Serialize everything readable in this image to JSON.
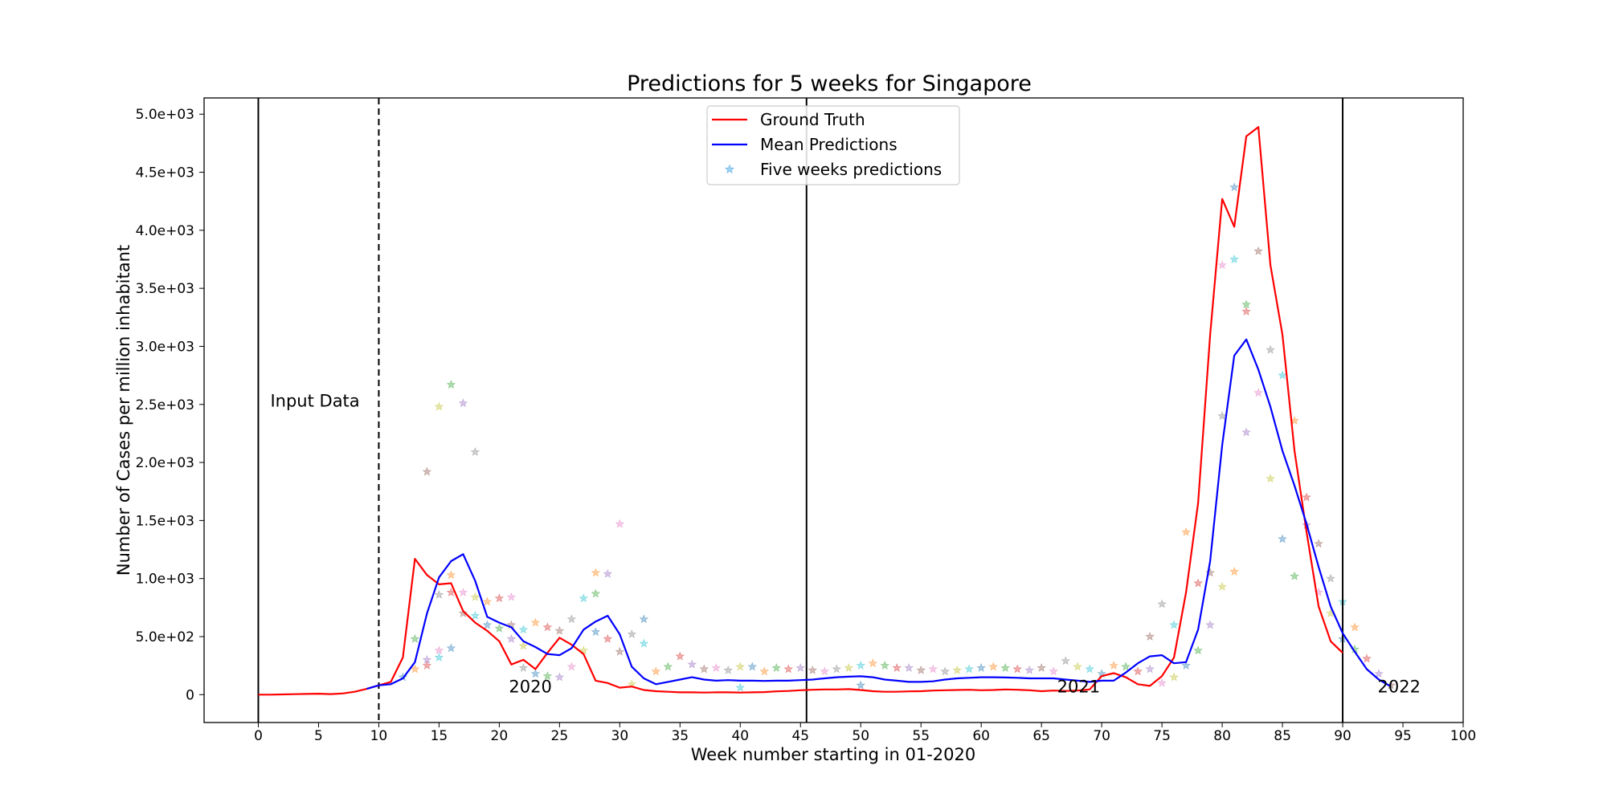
{
  "chart_data": {
    "type": "line",
    "title": "Predictions for 5 weeks for Singapore",
    "xlabel": "Week number starting in 01-2020",
    "ylabel": "Number of Cases per million inhabitant",
    "xlim": [
      -4.5,
      100
    ],
    "ylim": [
      -240,
      5140
    ],
    "x_ticks": [
      0,
      5,
      10,
      15,
      20,
      25,
      30,
      35,
      40,
      45,
      50,
      55,
      60,
      65,
      70,
      75,
      80,
      85,
      90,
      95,
      100
    ],
    "x_tick_labels": [
      "0",
      "5",
      "10",
      "15",
      "20",
      "25",
      "30",
      "35",
      "40",
      "45",
      "50",
      "55",
      "60",
      "65",
      "70",
      "75",
      "80",
      "85",
      "90",
      "95",
      "100"
    ],
    "y_ticks": [
      0,
      500,
      1000,
      1500,
      2000,
      2500,
      3000,
      3500,
      4000,
      4500,
      5000
    ],
    "y_tick_labels": [
      "0",
      "5.0e+02",
      "1.0e+03",
      "1.5e+03",
      "2.0e+03",
      "2.5e+03",
      "3.0e+03",
      "3.5e+03",
      "4.0e+03",
      "4.5e+03",
      "5.0e+03"
    ],
    "grid": false,
    "legend_position": "top-center",
    "vertical_lines": [
      {
        "x": 0,
        "style": "solid",
        "color": "#000000"
      },
      {
        "x": 10,
        "style": "dashed",
        "color": "#000000"
      },
      {
        "x": 45.5,
        "style": "solid",
        "color": "#000000"
      },
      {
        "x": 90,
        "style": "solid",
        "color": "#000000"
      }
    ],
    "annotations": [
      {
        "text": "Input Data",
        "x": 1,
        "y": 2480
      },
      {
        "text": "2020",
        "x": 20.8,
        "y": 20
      },
      {
        "text": "2021",
        "x": 66.3,
        "y": 20
      },
      {
        "text": "2022",
        "x": 92.9,
        "y": 20
      }
    ],
    "series": [
      {
        "name": "Ground Truth",
        "kind": "line",
        "color": "#ff0000",
        "x": [
          0,
          1,
          2,
          3,
          4,
          5,
          6,
          7,
          8,
          9,
          10,
          11,
          12,
          13,
          14,
          15,
          16,
          17,
          18,
          19,
          20,
          21,
          22,
          23,
          24,
          25,
          26,
          27,
          28,
          29,
          30,
          31,
          32,
          33,
          34,
          35,
          36,
          37,
          38,
          39,
          40,
          41,
          42,
          43,
          44,
          45,
          46,
          47,
          48,
          49,
          50,
          51,
          52,
          53,
          54,
          55,
          56,
          57,
          58,
          59,
          60,
          61,
          62,
          63,
          64,
          65,
          66,
          67,
          68,
          69,
          70,
          71,
          72,
          73,
          74,
          75,
          76,
          77,
          78,
          79,
          80,
          81,
          82,
          83,
          84,
          85,
          86,
          87,
          88,
          89,
          90
        ],
        "values": [
          0,
          0,
          2,
          4,
          6,
          8,
          5,
          10,
          25,
          50,
          80,
          110,
          320,
          1170,
          1030,
          950,
          960,
          720,
          620,
          550,
          460,
          260,
          300,
          220,
          360,
          490,
          430,
          350,
          120,
          100,
          60,
          70,
          40,
          30,
          25,
          20,
          20,
          18,
          20,
          20,
          18,
          20,
          22,
          28,
          32,
          38,
          42,
          45,
          45,
          48,
          40,
          30,
          25,
          25,
          28,
          30,
          35,
          38,
          40,
          42,
          38,
          40,
          45,
          42,
          38,
          30,
          35,
          32,
          35,
          45,
          160,
          185,
          150,
          90,
          75,
          160,
          320,
          880,
          1650,
          3100,
          4270,
          4030,
          4810,
          4890,
          3700,
          3100,
          2100,
          1400,
          760,
          460,
          360
        ]
      },
      {
        "name": "Mean Predictions",
        "kind": "line",
        "color": "#0000ff",
        "x": [
          9,
          10,
          11,
          12,
          13,
          14,
          15,
          16,
          17,
          18,
          19,
          20,
          21,
          22,
          23,
          24,
          25,
          26,
          27,
          28,
          29,
          30,
          31,
          32,
          33,
          34,
          35,
          36,
          37,
          38,
          39,
          40,
          41,
          42,
          43,
          44,
          45,
          46,
          47,
          48,
          49,
          50,
          51,
          52,
          53,
          54,
          55,
          56,
          57,
          58,
          59,
          60,
          61,
          62,
          63,
          64,
          65,
          66,
          67,
          68,
          69,
          70,
          71,
          72,
          73,
          74,
          75,
          76,
          77,
          78,
          79,
          80,
          81,
          82,
          83,
          84,
          85,
          86,
          87,
          88,
          89,
          90,
          91,
          92,
          93,
          94
        ],
        "values": [
          50,
          80,
          90,
          140,
          280,
          700,
          1010,
          1150,
          1210,
          980,
          670,
          620,
          580,
          460,
          410,
          350,
          340,
          400,
          560,
          630,
          680,
          520,
          240,
          140,
          90,
          110,
          130,
          150,
          130,
          120,
          125,
          120,
          120,
          118,
          120,
          120,
          125,
          130,
          140,
          150,
          155,
          158,
          150,
          130,
          120,
          110,
          110,
          115,
          130,
          140,
          145,
          150,
          150,
          148,
          145,
          140,
          140,
          140,
          130,
          120,
          110,
          120,
          120,
          190,
          270,
          330,
          340,
          270,
          280,
          560,
          1150,
          2150,
          2920,
          3060,
          2800,
          2480,
          2100,
          1800,
          1470,
          1100,
          760,
          530,
          370,
          220,
          130,
          70
        ]
      },
      {
        "name": "Five weeks predictions",
        "kind": "scatter",
        "marker": "star",
        "color": "#1f77b4",
        "legend_color": "#5fb3e8",
        "palette": [
          "#1f77b4",
          "#ff7f0e",
          "#2ca02c",
          "#d62728",
          "#9467bd",
          "#8c564b",
          "#e377c2",
          "#7f7f7f",
          "#bcbd22",
          "#17becf"
        ],
        "x": [
          12,
          13,
          13,
          14,
          14,
          14,
          15,
          15,
          15,
          15,
          16,
          16,
          16,
          16,
          17,
          17,
          17,
          18,
          18,
          18,
          19,
          19,
          20,
          20,
          21,
          21,
          21,
          22,
          22,
          22,
          23,
          23,
          24,
          24,
          25,
          25,
          26,
          26,
          27,
          27,
          28,
          28,
          28,
          29,
          29,
          30,
          30,
          31,
          31,
          32,
          32,
          33,
          34,
          35,
          36,
          37,
          38,
          39,
          40,
          40,
          41,
          42,
          43,
          44,
          45,
          46,
          47,
          48,
          49,
          50,
          50,
          51,
          52,
          53,
          54,
          55,
          56,
          57,
          58,
          59,
          60,
          61,
          62,
          63,
          64,
          65,
          66,
          67,
          68,
          69,
          70,
          71,
          72,
          73,
          74,
          74,
          75,
          75,
          76,
          76,
          77,
          77,
          78,
          78,
          79,
          79,
          80,
          80,
          80,
          81,
          81,
          81,
          82,
          82,
          82,
          83,
          83,
          84,
          84,
          85,
          85,
          86,
          86,
          87,
          87,
          88,
          88,
          89,
          89,
          90,
          90,
          91,
          91,
          92,
          93,
          94
        ],
        "values": [
          150,
          220,
          480,
          250,
          300,
          1920,
          380,
          860,
          2480,
          320,
          400,
          1030,
          2670,
          880,
          2510,
          700,
          880,
          2090,
          840,
          680,
          600,
          800,
          570,
          830,
          480,
          600,
          840,
          230,
          420,
          560,
          180,
          620,
          160,
          580,
          150,
          550,
          240,
          650,
          380,
          830,
          540,
          1050,
          870,
          480,
          1040,
          370,
          1470,
          520,
          90,
          440,
          650,
          200,
          240,
          330,
          260,
          220,
          230,
          210,
          240,
          60,
          240,
          200,
          230,
          220,
          230,
          210,
          200,
          220,
          230,
          250,
          80,
          270,
          250,
          230,
          230,
          210,
          220,
          200,
          210,
          220,
          230,
          240,
          230,
          220,
          210,
          230,
          200,
          290,
          240,
          220,
          180,
          250,
          240,
          200,
          220,
          500,
          100,
          780,
          150,
          600,
          250,
          1400,
          380,
          960,
          600,
          1050,
          3700,
          2400,
          930,
          3750,
          4370,
          1060,
          3360,
          3300,
          2260,
          3820,
          2600,
          2970,
          1860,
          2750,
          1340,
          2360,
          1020,
          1700,
          1460,
          1300,
          880,
          1000,
          700,
          800,
          480,
          580,
          390,
          310,
          180,
          80
        ]
      }
    ]
  }
}
